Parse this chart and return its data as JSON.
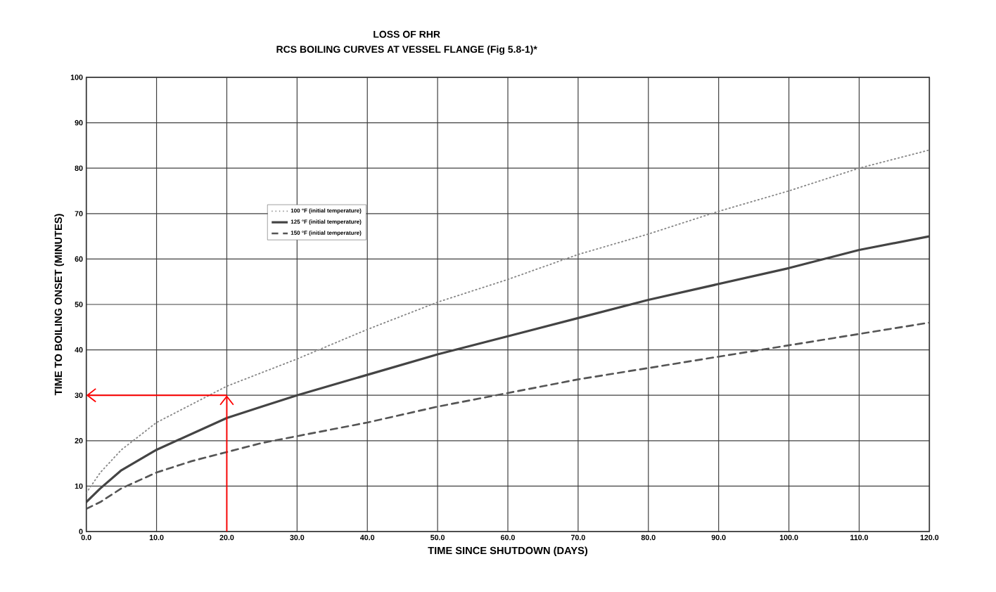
{
  "chart_data": {
    "type": "line",
    "title": "LOSS OF RHR",
    "subtitle": "RCS BOILING CURVES AT VESSEL FLANGE (Fig 5.8-1)*",
    "xlabel": "TIME SINCE SHUTDOWN (DAYS)",
    "ylabel": "TIME TO BOILING ONSET (MINUTES)",
    "x": [
      0,
      2,
      5,
      10,
      15,
      20,
      25,
      30,
      40,
      50,
      60,
      70,
      80,
      90,
      100,
      110,
      120
    ],
    "series": [
      {
        "name": "100 °F (initial temperature)",
        "color": "#888888",
        "line_style": "dotted",
        "values": [
          8.5,
          13,
          18,
          24,
          28,
          32,
          35,
          38,
          44.5,
          50.5,
          55.5,
          61,
          65.5,
          70.5,
          75,
          80,
          84
        ]
      },
      {
        "name": "125 °F (initial temperature)",
        "color": "#444444",
        "line_style": "solid",
        "values": [
          6.5,
          9.5,
          13.5,
          18,
          21.5,
          25,
          27.5,
          30,
          34.5,
          39,
          43,
          47,
          51,
          54.5,
          58,
          62,
          65
        ]
      },
      {
        "name": "150 °F (initial temperature)",
        "color": "#555555",
        "line_style": "dashed",
        "values": [
          5,
          6.5,
          9.5,
          13,
          15.5,
          17.5,
          19.5,
          21,
          24,
          27.5,
          30.5,
          33.5,
          36,
          38.5,
          41,
          43.5,
          46
        ]
      }
    ],
    "ref_lines": [
      {
        "axis": "x",
        "value": 20,
        "color": "#ff0000"
      },
      {
        "axis": "y",
        "value": 30,
        "color": "#ff0000"
      }
    ],
    "xlim": [
      0,
      120
    ],
    "ylim": [
      0,
      100
    ],
    "xticks": [
      {
        "value": 0,
        "label": "0.0"
      },
      {
        "value": 10,
        "label": "10.0"
      },
      {
        "value": 20,
        "label": "20.0"
      },
      {
        "value": 30,
        "label": "30.0"
      },
      {
        "value": 40,
        "label": "40.0"
      },
      {
        "value": 50,
        "label": "50.0"
      },
      {
        "value": 60,
        "label": "60.0"
      },
      {
        "value": 70,
        "label": "70.0"
      },
      {
        "value": 80,
        "label": "80.0"
      },
      {
        "value": 90,
        "label": "90.0"
      },
      {
        "value": 100,
        "label": "100.0"
      },
      {
        "value": 110,
        "label": "110.0"
      },
      {
        "value": 120,
        "label": "120.0"
      }
    ],
    "yticks": [
      0,
      10,
      20,
      30,
      40,
      50,
      60,
      70,
      80,
      90,
      100
    ],
    "grid": true,
    "legend": "top left",
    "marker": "none"
  }
}
